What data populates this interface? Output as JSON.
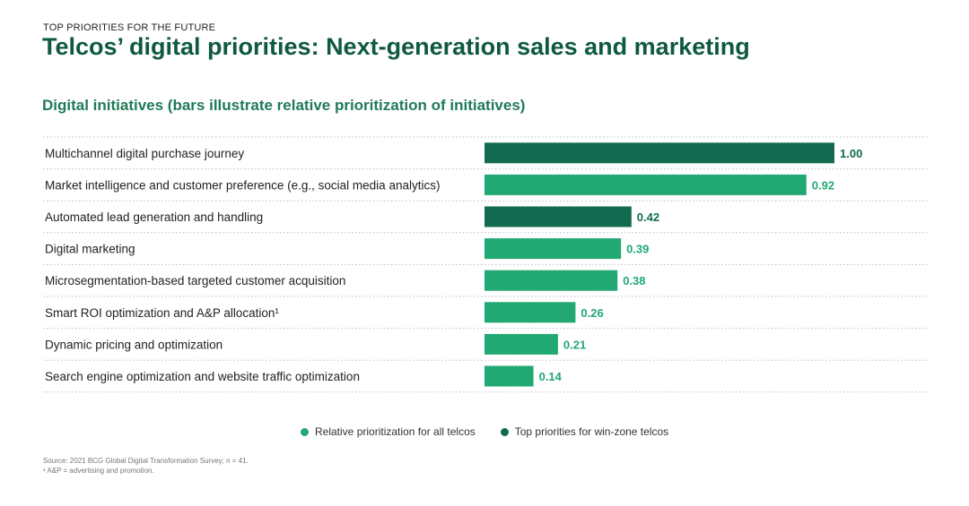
{
  "header": {
    "eyebrow": "TOP PRIORITIES FOR THE FUTURE",
    "title": "Telcos’ digital priorities: Next-generation sales and marketing",
    "subtitle": "Digital initiatives (bars illustrate relative prioritization of initiatives)"
  },
  "colors": {
    "all_telcos": "#22a873",
    "win_zone": "#126b50",
    "title": "#0f5a3e",
    "divider": "#bdbdbd"
  },
  "chart_data": {
    "type": "bar",
    "orientation": "horizontal",
    "categories": [
      "Multichannel digital purchase journey",
      "Market intelligence and customer preference (e.g., social media analytics)",
      "Automated lead generation and handling",
      "Digital marketing",
      "Microsegmentation-based targeted customer acquisition",
      "Smart ROI optimization and A&P allocation¹",
      "Dynamic pricing and optimization",
      "Search engine optimization and website traffic optimization"
    ],
    "values": [
      1.0,
      0.92,
      0.42,
      0.39,
      0.38,
      0.26,
      0.21,
      0.14
    ],
    "value_labels": [
      "1.00",
      "0.92",
      "0.42",
      "0.39",
      "0.38",
      "0.26",
      "0.21",
      "0.14"
    ],
    "series_membership": [
      "win_zone",
      "all_telcos",
      "win_zone",
      "all_telcos",
      "all_telcos",
      "all_telcos",
      "all_telcos",
      "all_telcos"
    ],
    "xlim": [
      0,
      1
    ],
    "legend": [
      {
        "key": "all_telcos",
        "label": "Relative prioritization for all telcos"
      },
      {
        "key": "win_zone",
        "label": "Top priorities for win-zone telcos"
      }
    ],
    "legend_position": "bottom-center"
  },
  "footer": {
    "source": "Source: 2021 BCG Global Digital Transformation Survey; n = 41.",
    "note": "¹ A&P = advertising and promotion."
  }
}
